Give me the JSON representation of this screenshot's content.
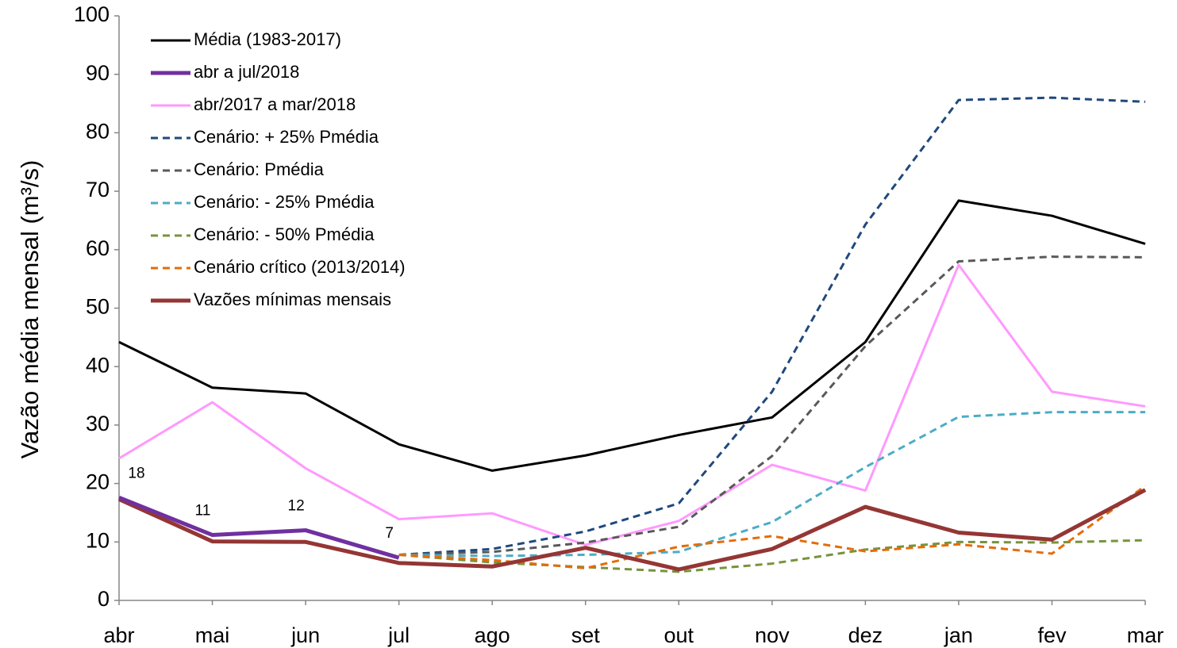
{
  "chart_data": {
    "type": "line",
    "y_label": "Vazão média mensal (m³/s)",
    "categories": [
      "abr",
      "mai",
      "jun",
      "jul",
      "ago",
      "set",
      "out",
      "nov",
      "dez",
      "jan",
      "fev",
      "mar"
    ],
    "ylim": [
      0,
      100
    ],
    "yticks": [
      0,
      10,
      20,
      30,
      40,
      50,
      60,
      70,
      80,
      90,
      100
    ],
    "legend": "upper left",
    "series": [
      {
        "name": "Média (1983-2017)",
        "color": "#000000",
        "dashed": false,
        "values": [
          44.2,
          36.4,
          35.4,
          26.7,
          22.2,
          24.8,
          28.3,
          31.3,
          44.2,
          68.4,
          65.8,
          61.0
        ]
      },
      {
        "name": "abr a jul/2018",
        "color": "#7030a0",
        "dashed": false,
        "values": [
          17.6,
          11.2,
          12.0,
          7.3,
          null,
          null,
          null,
          null,
          null,
          null,
          null,
          null
        ],
        "value_labels": [
          "18",
          "11",
          "12",
          "7",
          null,
          null,
          null,
          null,
          null,
          null,
          null,
          null
        ]
      },
      {
        "name": "abr/2017 a mar/2018",
        "color": "#ff99ff",
        "dashed": false,
        "values": [
          24.3,
          33.9,
          22.6,
          13.9,
          14.9,
          9.5,
          13.6,
          23.2,
          18.8,
          57.4,
          35.7,
          33.2
        ]
      },
      {
        "name": "Cenário: + 25% Pmédia",
        "color": "#1f497d",
        "dashed": true,
        "values": [
          null,
          null,
          null,
          7.8,
          8.8,
          11.8,
          16.6,
          35.7,
          64.3,
          85.6,
          86.0,
          85.3
        ]
      },
      {
        "name": "Cenário: Pmédia",
        "color": "#595959",
        "dashed": true,
        "values": [
          null,
          null,
          null,
          7.8,
          8.3,
          9.9,
          12.6,
          24.7,
          43.5,
          58.0,
          58.8,
          58.7
        ]
      },
      {
        "name": "Cenário: - 25% Pmédia",
        "color": "#4bacc6",
        "dashed": true,
        "values": [
          null,
          null,
          null,
          7.8,
          7.6,
          7.8,
          8.3,
          13.4,
          22.8,
          31.4,
          32.2,
          32.2
        ]
      },
      {
        "name": "Cenário: - 50% Pmédia",
        "color": "#77933c",
        "dashed": true,
        "values": [
          null,
          null,
          null,
          7.8,
          6.5,
          5.7,
          4.9,
          6.3,
          8.7,
          10.0,
          9.9,
          10.3
        ]
      },
      {
        "name": "Cenário crítico (2013/2014)",
        "color": "#e46c0a",
        "dashed": true,
        "values": [
          null,
          null,
          null,
          7.8,
          6.9,
          5.5,
          9.2,
          11.0,
          8.4,
          9.6,
          8.0,
          19.6
        ]
      },
      {
        "name": "Vazões mínimas mensais",
        "color": "#943634",
        "dashed": false,
        "values": [
          17.3,
          10.1,
          10.0,
          6.4,
          5.8,
          9.0,
          5.3,
          8.8,
          16.0,
          11.6,
          10.4,
          18.9
        ]
      }
    ]
  }
}
